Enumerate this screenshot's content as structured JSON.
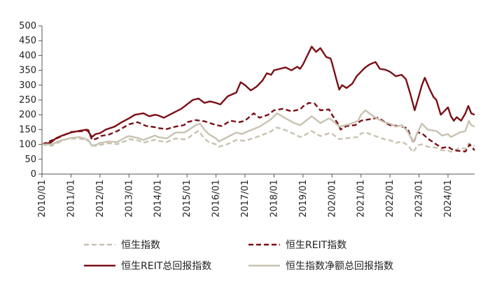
{
  "chart_data": {
    "type": "line",
    "title": "",
    "xlabel": "",
    "ylabel": "",
    "ylim": [
      0,
      500
    ],
    "yticks": [
      0,
      50,
      100,
      150,
      200,
      250,
      300,
      350,
      400,
      450,
      500
    ],
    "xlim": [
      2010.0,
      2024.917
    ],
    "xticks": [
      {
        "label": "2010/01",
        "value": 2010
      },
      {
        "label": "2011/01",
        "value": 2011
      },
      {
        "label": "2012/01",
        "value": 2012
      },
      {
        "label": "2013/01",
        "value": 2013
      },
      {
        "label": "2014/01",
        "value": 2014
      },
      {
        "label": "2015/01",
        "value": 2015
      },
      {
        "label": "2016/01",
        "value": 2016
      },
      {
        "label": "2017/01",
        "value": 2017
      },
      {
        "label": "2018/01",
        "value": 2018
      },
      {
        "label": "2019/01",
        "value": 2019
      },
      {
        "label": "2020/01",
        "value": 2020
      },
      {
        "label": "2021/01",
        "value": 2021
      },
      {
        "label": "2022/01",
        "value": 2022
      },
      {
        "label": "2023/01",
        "value": 2023
      },
      {
        "label": "2024/01",
        "value": 2024
      }
    ],
    "grid": false,
    "legend_position": "bottom",
    "series": [
      {
        "name": "恒生指数",
        "color": "#c8c2b0",
        "style": "dashed",
        "points": [
          [
            2010.0,
            100
          ],
          [
            2010.33,
            95
          ],
          [
            2010.6,
            108
          ],
          [
            2010.85,
            118
          ],
          [
            2011.0,
            119
          ],
          [
            2011.3,
            120
          ],
          [
            2011.6,
            112
          ],
          [
            2011.72,
            97
          ],
          [
            2011.9,
            95
          ],
          [
            2012.0,
            98
          ],
          [
            2012.3,
            104
          ],
          [
            2012.6,
            101
          ],
          [
            2012.9,
            112
          ],
          [
            2013.0,
            118
          ],
          [
            2013.3,
            114
          ],
          [
            2013.5,
            106
          ],
          [
            2013.9,
            116
          ],
          [
            2014.0,
            112
          ],
          [
            2014.3,
            108
          ],
          [
            2014.6,
            120
          ],
          [
            2014.9,
            117
          ],
          [
            2015.0,
            119
          ],
          [
            2015.3,
            140
          ],
          [
            2015.4,
            145
          ],
          [
            2015.6,
            120
          ],
          [
            2015.75,
            108
          ],
          [
            2016.0,
            100
          ],
          [
            2016.1,
            92
          ],
          [
            2016.4,
            101
          ],
          [
            2016.7,
            115
          ],
          [
            2016.9,
            113
          ],
          [
            2017.0,
            112
          ],
          [
            2017.5,
            128
          ],
          [
            2017.9,
            144
          ],
          [
            2018.0,
            152
          ],
          [
            2018.1,
            157
          ],
          [
            2018.4,
            148
          ],
          [
            2018.7,
            135
          ],
          [
            2018.9,
            125
          ],
          [
            2019.0,
            128
          ],
          [
            2019.3,
            145
          ],
          [
            2019.6,
            128
          ],
          [
            2019.9,
            138
          ],
          [
            2020.0,
            136
          ],
          [
            2020.25,
            118
          ],
          [
            2020.6,
            122
          ],
          [
            2020.9,
            125
          ],
          [
            2021.0,
            137
          ],
          [
            2021.15,
            141
          ],
          [
            2021.5,
            128
          ],
          [
            2021.8,
            118
          ],
          [
            2022.0,
            114
          ],
          [
            2022.2,
            105
          ],
          [
            2022.4,
            110
          ],
          [
            2022.6,
            98
          ],
          [
            2022.8,
            74
          ],
          [
            2022.95,
            97
          ],
          [
            2023.1,
            100
          ],
          [
            2023.3,
            92
          ],
          [
            2023.6,
            89
          ],
          [
            2023.8,
            80
          ],
          [
            2024.0,
            80
          ],
          [
            2024.1,
            75
          ],
          [
            2024.4,
            88
          ],
          [
            2024.6,
            85
          ],
          [
            2024.72,
            103
          ],
          [
            2024.8,
            96
          ],
          [
            2024.917,
            95
          ]
        ]
      },
      {
        "name": "恒生REIT指数",
        "color": "#7a0f15",
        "style": "dashed",
        "points": [
          [
            2010.0,
            100
          ],
          [
            2010.5,
            120
          ],
          [
            2011.0,
            142
          ],
          [
            2011.4,
            145
          ],
          [
            2011.6,
            148
          ],
          [
            2011.72,
            115
          ],
          [
            2011.9,
            120
          ],
          [
            2012.0,
            128
          ],
          [
            2012.3,
            133
          ],
          [
            2012.6,
            145
          ],
          [
            2012.9,
            162
          ],
          [
            2013.0,
            168
          ],
          [
            2013.3,
            175
          ],
          [
            2013.6,
            162
          ],
          [
            2013.9,
            158
          ],
          [
            2014.0,
            155
          ],
          [
            2014.3,
            152
          ],
          [
            2014.6,
            160
          ],
          [
            2014.9,
            165
          ],
          [
            2015.0,
            175
          ],
          [
            2015.3,
            182
          ],
          [
            2015.6,
            178
          ],
          [
            2015.8,
            172
          ],
          [
            2016.0,
            165
          ],
          [
            2016.2,
            162
          ],
          [
            2016.5,
            180
          ],
          [
            2016.8,
            175
          ],
          [
            2017.0,
            180
          ],
          [
            2017.3,
            205
          ],
          [
            2017.5,
            190
          ],
          [
            2017.8,
            200
          ],
          [
            2018.0,
            215
          ],
          [
            2018.3,
            220
          ],
          [
            2018.6,
            212
          ],
          [
            2018.9,
            218
          ],
          [
            2019.0,
            228
          ],
          [
            2019.2,
            240
          ],
          [
            2019.4,
            238
          ],
          [
            2019.6,
            215
          ],
          [
            2019.9,
            218
          ],
          [
            2020.0,
            200
          ],
          [
            2020.2,
            170
          ],
          [
            2020.3,
            150
          ],
          [
            2020.5,
            162
          ],
          [
            2020.8,
            165
          ],
          [
            2021.0,
            180
          ],
          [
            2021.3,
            185
          ],
          [
            2021.6,
            190
          ],
          [
            2021.9,
            170
          ],
          [
            2022.0,
            165
          ],
          [
            2022.3,
            162
          ],
          [
            2022.6,
            155
          ],
          [
            2022.8,
            105
          ],
          [
            2022.95,
            140
          ],
          [
            2023.1,
            138
          ],
          [
            2023.3,
            120
          ],
          [
            2023.6,
            100
          ],
          [
            2023.8,
            88
          ],
          [
            2024.0,
            92
          ],
          [
            2024.2,
            80
          ],
          [
            2024.4,
            78
          ],
          [
            2024.6,
            76
          ],
          [
            2024.75,
            100
          ],
          [
            2024.917,
            80
          ]
        ]
      },
      {
        "name": "恒生REIT总回报指数",
        "color": "#7a0f15",
        "style": "solid",
        "points": [
          [
            2010.0,
            100
          ],
          [
            2010.15,
            103
          ],
          [
            2010.3,
            106
          ],
          [
            2010.5,
            122
          ],
          [
            2010.7,
            130
          ],
          [
            2011.0,
            140
          ],
          [
            2011.3,
            146
          ],
          [
            2011.55,
            150
          ],
          [
            2011.72,
            125
          ],
          [
            2011.85,
            135
          ],
          [
            2012.0,
            138
          ],
          [
            2012.2,
            150
          ],
          [
            2012.5,
            160
          ],
          [
            2012.75,
            175
          ],
          [
            2013.0,
            188
          ],
          [
            2013.2,
            200
          ],
          [
            2013.5,
            205
          ],
          [
            2013.7,
            195
          ],
          [
            2013.9,
            200
          ],
          [
            2014.0,
            198
          ],
          [
            2014.2,
            190
          ],
          [
            2014.5,
            205
          ],
          [
            2014.8,
            220
          ],
          [
            2015.0,
            235
          ],
          [
            2015.2,
            250
          ],
          [
            2015.4,
            255
          ],
          [
            2015.6,
            240
          ],
          [
            2015.8,
            245
          ],
          [
            2016.0,
            240
          ],
          [
            2016.15,
            235
          ],
          [
            2016.4,
            262
          ],
          [
            2016.7,
            275
          ],
          [
            2016.85,
            310
          ],
          [
            2017.0,
            300
          ],
          [
            2017.2,
            282
          ],
          [
            2017.4,
            295
          ],
          [
            2017.6,
            315
          ],
          [
            2017.75,
            340
          ],
          [
            2017.9,
            335
          ],
          [
            2018.0,
            350
          ],
          [
            2018.2,
            355
          ],
          [
            2018.4,
            360
          ],
          [
            2018.6,
            350
          ],
          [
            2018.8,
            362
          ],
          [
            2018.9,
            355
          ],
          [
            2019.0,
            370
          ],
          [
            2019.15,
            400
          ],
          [
            2019.3,
            430
          ],
          [
            2019.45,
            412
          ],
          [
            2019.6,
            425
          ],
          [
            2019.8,
            395
          ],
          [
            2019.95,
            390
          ],
          [
            2020.0,
            375
          ],
          [
            2020.15,
            320
          ],
          [
            2020.25,
            285
          ],
          [
            2020.35,
            300
          ],
          [
            2020.5,
            290
          ],
          [
            2020.7,
            305
          ],
          [
            2020.85,
            330
          ],
          [
            2021.0,
            345
          ],
          [
            2021.15,
            360
          ],
          [
            2021.3,
            370
          ],
          [
            2021.5,
            378
          ],
          [
            2021.65,
            355
          ],
          [
            2021.85,
            352
          ],
          [
            2022.0,
            345
          ],
          [
            2022.2,
            330
          ],
          [
            2022.4,
            335
          ],
          [
            2022.55,
            320
          ],
          [
            2022.7,
            270
          ],
          [
            2022.85,
            215
          ],
          [
            2023.0,
            265
          ],
          [
            2023.1,
            300
          ],
          [
            2023.2,
            325
          ],
          [
            2023.35,
            290
          ],
          [
            2023.5,
            260
          ],
          [
            2023.6,
            250
          ],
          [
            2023.75,
            200
          ],
          [
            2023.9,
            215
          ],
          [
            2024.0,
            225
          ],
          [
            2024.1,
            195
          ],
          [
            2024.2,
            180
          ],
          [
            2024.3,
            192
          ],
          [
            2024.45,
            180
          ],
          [
            2024.6,
            205
          ],
          [
            2024.7,
            230
          ],
          [
            2024.8,
            205
          ],
          [
            2024.917,
            200
          ]
        ]
      },
      {
        "name": "恒生指数净额总回报指数",
        "color": "#c8c2b0",
        "style": "solid",
        "points": [
          [
            2010.0,
            100
          ],
          [
            2010.33,
            100
          ],
          [
            2010.6,
            112
          ],
          [
            2010.85,
            118
          ],
          [
            2011.0,
            122
          ],
          [
            2011.3,
            125
          ],
          [
            2011.6,
            115
          ],
          [
            2011.72,
            95
          ],
          [
            2011.9,
            100
          ],
          [
            2012.0,
            105
          ],
          [
            2012.3,
            110
          ],
          [
            2012.6,
            108
          ],
          [
            2012.9,
            125
          ],
          [
            2013.0,
            128
          ],
          [
            2013.3,
            122
          ],
          [
            2013.5,
            115
          ],
          [
            2013.9,
            130
          ],
          [
            2014.0,
            125
          ],
          [
            2014.3,
            120
          ],
          [
            2014.6,
            140
          ],
          [
            2014.9,
            140
          ],
          [
            2015.0,
            145
          ],
          [
            2015.3,
            165
          ],
          [
            2015.45,
            170
          ],
          [
            2015.6,
            150
          ],
          [
            2015.75,
            135
          ],
          [
            2016.0,
            120
          ],
          [
            2016.1,
            110
          ],
          [
            2016.4,
            125
          ],
          [
            2016.7,
            140
          ],
          [
            2016.9,
            135
          ],
          [
            2017.0,
            140
          ],
          [
            2017.5,
            160
          ],
          [
            2017.9,
            185
          ],
          [
            2018.0,
            195
          ],
          [
            2018.1,
            205
          ],
          [
            2018.4,
            188
          ],
          [
            2018.7,
            172
          ],
          [
            2018.9,
            165
          ],
          [
            2019.0,
            172
          ],
          [
            2019.3,
            195
          ],
          [
            2019.6,
            172
          ],
          [
            2019.9,
            188
          ],
          [
            2020.0,
            182
          ],
          [
            2020.25,
            160
          ],
          [
            2020.6,
            168
          ],
          [
            2020.9,
            180
          ],
          [
            2021.0,
            200
          ],
          [
            2021.15,
            215
          ],
          [
            2021.5,
            190
          ],
          [
            2021.8,
            175
          ],
          [
            2022.0,
            170
          ],
          [
            2022.2,
            160
          ],
          [
            2022.4,
            165
          ],
          [
            2022.6,
            145
          ],
          [
            2022.8,
            108
          ],
          [
            2022.95,
            140
          ],
          [
            2023.1,
            170
          ],
          [
            2023.3,
            150
          ],
          [
            2023.6,
            145
          ],
          [
            2023.8,
            130
          ],
          [
            2024.0,
            135
          ],
          [
            2024.1,
            125
          ],
          [
            2024.4,
            140
          ],
          [
            2024.6,
            145
          ],
          [
            2024.72,
            180
          ],
          [
            2024.8,
            165
          ],
          [
            2024.917,
            160
          ]
        ]
      }
    ]
  }
}
